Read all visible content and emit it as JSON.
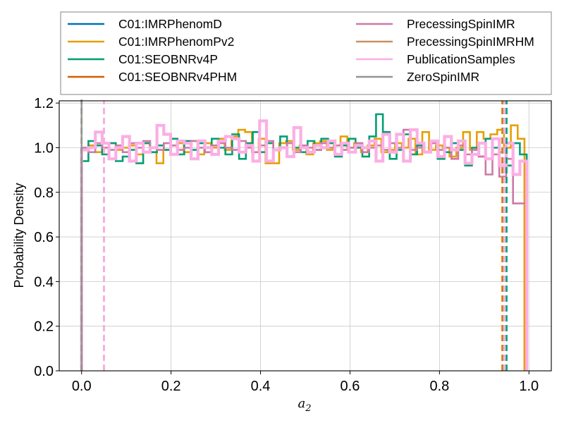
{
  "chart_data": {
    "type": "histogram",
    "xlabel": "a",
    "xlabel_sub": "2",
    "ylabel": "Probability Density",
    "xlim": [
      -0.05,
      1.05
    ],
    "ylim": [
      0.0,
      1.21
    ],
    "xticks": [
      "0.0",
      "0.2",
      "0.4",
      "0.6",
      "0.8",
      "1.0"
    ],
    "xtick_values": [
      0.0,
      0.2,
      0.4,
      0.6,
      0.8,
      1.0
    ],
    "yticks": [
      "0.0",
      "0.2",
      "0.4",
      "0.6",
      "0.8",
      "1.0",
      "1.2"
    ],
    "ytick_values": [
      0.0,
      0.2,
      0.4,
      0.6,
      0.8,
      1.0,
      1.2
    ],
    "grid": true,
    "legend_position": "top",
    "legend_columns": 2,
    "series": [
      {
        "name": "C01:IMRPhenomD",
        "color": "#0072b2",
        "x_start": 0.0,
        "x_end": 0.95,
        "values": [],
        "quantile_lines": []
      },
      {
        "name": "C01:IMRPhenomPv2",
        "color": "#e69f00",
        "x_start": 0.0,
        "x_end": 0.99,
        "values": [
          0.99,
          1.01,
          0.98,
          1.0,
          1.02,
          0.99,
          1.0,
          1.01,
          0.97,
          1.02,
          0.98,
          0.93,
          0.99,
          1.01,
          1.02,
          0.98,
          1.03,
          0.97,
          1.02,
          1.0,
          1.04,
          0.99,
          1.05,
          1.08,
          1.07,
          0.98,
          1.04,
          0.93,
          0.93,
          1.02,
          1.03,
          0.99,
          1.01,
          0.97,
          1.02,
          1.03,
          0.99,
          1.01,
          1.05,
          1.0,
          1.02,
          0.98,
          1.01,
          1.04,
          0.98,
          0.99,
          1.02,
          1.0,
          1.04,
          0.97,
          1.07,
          0.99,
          1.01,
          1.0,
          0.96,
          1.0,
          1.07,
          0.99,
          1.07,
          1.04,
          1.06,
          1.08,
          1.0,
          1.1,
          1.04
        ],
        "quantile_lines": [
          0.0,
          0.94
        ]
      },
      {
        "name": "C01:SEOBNRv4P",
        "color": "#009e73",
        "x_start": 0.0,
        "x_end": 0.995,
        "values": [
          0.94,
          1.03,
          1.01,
          0.97,
          1.02,
          0.94,
          0.96,
          0.99,
          0.93,
          1.02,
          0.98,
          1.01,
          0.99,
          1.04,
          0.97,
          1.03,
          0.99,
          1.02,
          0.98,
          1.04,
          1.0,
          0.97,
          1.06,
          0.95,
          1.02,
          1.07,
          0.98,
          1.02,
          0.99,
          1.05,
          0.96,
          1.0,
          0.98,
          1.03,
          0.99,
          1.04,
          1.02,
          0.96,
          1.01,
          1.04,
          1.0,
          0.96,
          1.05,
          1.15,
          1.07,
          0.95,
          0.99,
          1.06,
          0.97,
          1.01,
          0.98,
          1.03,
          0.95,
          0.98,
          1.02,
          0.99,
          0.92,
          1.0,
          0.96,
          1.04,
          1.0,
          0.98,
          0.92,
          1.02,
          0.97
        ],
        "quantile_lines": [
          0.0,
          0.95
        ]
      },
      {
        "name": "C01:SEOBNRv4PHM",
        "color": "#d55e00",
        "x_start": 0.0,
        "x_end": 0.99,
        "values": [],
        "quantile_lines": [
          0.0,
          0.942
        ]
      },
      {
        "name": "PrecessingSpinIMR",
        "color": "#cc79a7",
        "x_start": 0.0,
        "x_end": 0.995,
        "values": [
          1.0,
          0.98,
          1.02,
          1.0,
          0.99,
          1.01,
          0.98,
          1.02,
          1.0,
          1.03,
          1.0,
          0.99,
          1.02,
          1.01,
          0.99,
          1.0,
          1.03,
          1.0,
          0.98,
          1.01,
          1.02,
          1.0,
          0.99,
          1.03,
          1.0,
          0.98,
          1.01,
          1.03,
          0.99,
          1.0,
          1.02,
          0.98,
          1.01,
          1.0,
          0.99,
          1.02,
          1.0,
          1.01,
          0.99,
          1.0,
          1.02,
          0.98,
          1.0,
          1.01,
          0.99,
          1.02,
          1.0,
          1.08,
          0.99,
          1.0,
          0.98,
          1.02,
          0.99,
          1.0,
          0.95,
          1.01,
          0.97,
          0.99,
          0.96,
          0.88,
          0.97,
          0.87,
          0.95,
          0.75,
          0.75
        ],
        "quantile_lines": [
          0.05,
          0.945
        ]
      },
      {
        "name": "PrecessingSpinIMRHM",
        "color": "#ca9161",
        "x_start": 0.0,
        "x_end": 0.99,
        "values": [],
        "quantile_lines": [
          0.0,
          0.943
        ]
      },
      {
        "name": "PublicationSamples",
        "color": "#fbafe4",
        "x_start": 0.0,
        "x_end": 0.995,
        "values": [
          0.99,
          1.0,
          1.07,
          1.02,
          0.95,
          1.0,
          1.05,
          0.94,
          1.02,
          0.98,
          1.0,
          1.1,
          1.06,
          0.97,
          1.03,
          1.02,
          0.95,
          1.03,
          1.0,
          0.97,
          1.03,
          1.05,
          1.04,
          0.98,
          1.01,
          0.94,
          1.12,
          0.94,
          0.99,
          1.0,
          0.96,
          1.09,
          1.0,
          0.98,
          1.01,
          1.0,
          1.03,
          0.97,
          1.02,
          0.98,
          1.01,
          1.0,
          1.03,
          0.94,
          1.06,
          0.98,
          1.06,
          0.94,
          1.08,
          1.02,
          0.98,
          1.03,
          0.96,
          1.05,
          0.99,
          1.03,
          0.93,
          0.97,
          1.02,
          0.95,
          1.04,
          0.92,
          1.02,
          0.88,
          0.94
        ],
        "quantile_lines": [
          0.05,
          0.945
        ]
      },
      {
        "name": "ZeroSpinIMR",
        "color": "#949494",
        "x_start": 0.0,
        "x_end": 0.0,
        "values": [],
        "quantile_lines": [
          0.0
        ],
        "spike_at_zero": true
      }
    ]
  }
}
